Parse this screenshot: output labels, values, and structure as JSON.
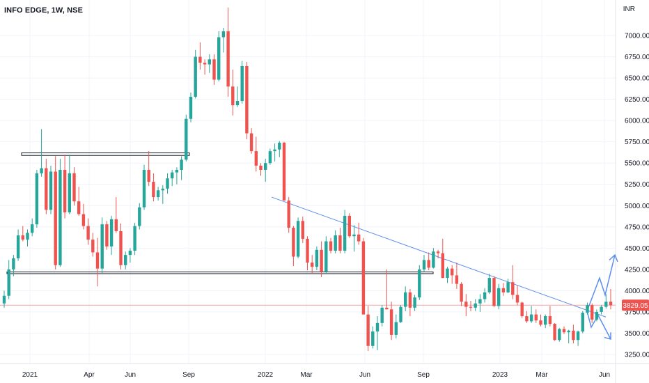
{
  "header": {
    "symbol_title": "INFO EDGE, 1W, NSE",
    "currency": "INR"
  },
  "colors": {
    "up": "#26a69a",
    "down": "#ef5350",
    "trendline": "#5b8def",
    "price_line": "#f4a3a3",
    "grid": "#f0f3fa",
    "box": "#131722"
  },
  "chart_data": {
    "type": "candlestick",
    "ylim": [
      3200,
      7300
    ],
    "y_ticks": [
      "3250.00",
      "3500.00",
      "3750.00",
      "4000.00",
      "4250.00",
      "4500.00",
      "4750.00",
      "5000.00",
      "5250.00",
      "5500.00",
      "5750.00",
      "6000.00",
      "6250.00",
      "6500.00",
      "6750.00",
      "7000.00"
    ],
    "x_ticks": [
      "2021",
      "Apr",
      "Jun",
      "Sep",
      "2022",
      "Mar",
      "Jun",
      "Sep",
      "2023",
      "Mar",
      "Jun"
    ],
    "last_price_label": "3829.05",
    "last_price": 3829.05,
    "ohlc": [
      [
        3850,
        4000,
        3800,
        3940
      ],
      [
        3940,
        4360,
        3900,
        4250
      ],
      [
        4250,
        4420,
        4170,
        4380
      ],
      [
        4380,
        4720,
        4350,
        4650
      ],
      [
        4650,
        4760,
        4580,
        4600
      ],
      [
        4600,
        4720,
        4520,
        4680
      ],
      [
        4680,
        4850,
        4640,
        4780
      ],
      [
        4780,
        5420,
        4740,
        5380
      ],
      [
        5380,
        5900,
        5340,
        5440
      ],
      [
        5440,
        5550,
        4900,
        4950
      ],
      [
        4950,
        5470,
        4900,
        5400
      ],
      [
        5400,
        5580,
        4250,
        4300
      ],
      [
        4300,
        5550,
        4280,
        5420
      ],
      [
        5420,
        5600,
        4850,
        4920
      ],
      [
        4920,
        5600,
        4900,
        5380
      ],
      [
        5380,
        5450,
        5000,
        5050
      ],
      [
        5050,
        5220,
        4880,
        4900
      ],
      [
        4900,
        5020,
        4720,
        4760
      ],
      [
        4760,
        4850,
        4540,
        4600
      ],
      [
        4600,
        4680,
        4400,
        4450
      ],
      [
        4450,
        4620,
        4050,
        4260
      ],
      [
        4260,
        4860,
        4200,
        4780
      ],
      [
        4780,
        4820,
        4480,
        4520
      ],
      [
        4520,
        4880,
        4420,
        4840
      ],
      [
        4840,
        5100,
        4680,
        4700
      ],
      [
        4700,
        4790,
        4250,
        4300
      ],
      [
        4300,
        4460,
        4250,
        4420
      ],
      [
        4420,
        4500,
        4330,
        4470
      ],
      [
        4470,
        4800,
        4420,
        4760
      ],
      [
        4760,
        5030,
        4720,
        4980
      ],
      [
        4980,
        5480,
        4950,
        5420
      ],
      [
        5420,
        5640,
        5230,
        5280
      ],
      [
        5280,
        5380,
        5050,
        5100
      ],
      [
        5100,
        5220,
        5060,
        5180
      ],
      [
        5180,
        5240,
        5020,
        5200
      ],
      [
        5200,
        5380,
        5140,
        5320
      ],
      [
        5320,
        5420,
        5230,
        5390
      ],
      [
        5390,
        5450,
        5250,
        5420
      ],
      [
        5420,
        5580,
        5300,
        5540
      ],
      [
        5540,
        6070,
        5520,
        6020
      ],
      [
        6020,
        6330,
        5980,
        6280
      ],
      [
        6280,
        6830,
        6260,
        6750
      ],
      [
        6750,
        6920,
        6600,
        6680
      ],
      [
        6680,
        6720,
        6540,
        6660
      ],
      [
        6660,
        6780,
        6560,
        6720
      ],
      [
        6720,
        6780,
        6420,
        6480
      ],
      [
        6480,
        7050,
        6460,
        6980
      ],
      [
        6980,
        7090,
        6800,
        7050
      ],
      [
        7050,
        7330,
        6280,
        6400
      ],
      [
        6400,
        6600,
        6060,
        6180
      ],
      [
        6180,
        6400,
        6160,
        6230
      ],
      [
        6230,
        6700,
        6200,
        6640
      ],
      [
        6640,
        6690,
        5780,
        5850
      ],
      [
        5850,
        5910,
        5610,
        5640
      ],
      [
        5640,
        5810,
        5400,
        5470
      ],
      [
        5470,
        5500,
        5350,
        5420
      ],
      [
        5420,
        5550,
        5280,
        5500
      ],
      [
        5500,
        5670,
        5480,
        5640
      ],
      [
        5640,
        5730,
        5520,
        5660
      ],
      [
        5660,
        5760,
        5570,
        5740
      ],
      [
        5740,
        5750,
        5100,
        5060
      ],
      [
        5060,
        5100,
        4680,
        4740
      ],
      [
        4740,
        4760,
        4290,
        4400
      ],
      [
        4400,
        4860,
        4380,
        4820
      ],
      [
        4820,
        4870,
        4560,
        4610
      ],
      [
        4610,
        4640,
        4240,
        4330
      ],
      [
        4330,
        4420,
        4200,
        4280
      ],
      [
        4280,
        4520,
        4240,
        4480
      ],
      [
        4480,
        4580,
        4160,
        4220
      ],
      [
        4220,
        4640,
        4200,
        4580
      ],
      [
        4580,
        4620,
        4440,
        4470
      ],
      [
        4470,
        4710,
        4440,
        4650
      ],
      [
        4650,
        4740,
        4440,
        4470
      ],
      [
        4470,
        4950,
        4440,
        4880
      ],
      [
        4880,
        4910,
        4620,
        4640
      ],
      [
        4640,
        4770,
        4460,
        4660
      ],
      [
        4660,
        4800,
        4540,
        4580
      ],
      [
        4580,
        4620,
        3720,
        3720
      ],
      [
        3720,
        3820,
        3290,
        3350
      ],
      [
        3350,
        3580,
        3320,
        3520
      ],
      [
        3520,
        3700,
        3300,
        3620
      ],
      [
        3620,
        3830,
        3580,
        3800
      ],
      [
        3800,
        4250,
        3780,
        3780
      ],
      [
        3780,
        3870,
        3420,
        3480
      ],
      [
        3480,
        3720,
        3440,
        3630
      ],
      [
        3630,
        3830,
        3620,
        3810
      ],
      [
        3810,
        4050,
        3760,
        3980
      ],
      [
        3980,
        4020,
        3700,
        3800
      ],
      [
        3800,
        3950,
        3760,
        3920
      ],
      [
        3920,
        4300,
        3890,
        4250
      ],
      [
        4250,
        4420,
        4220,
        4360
      ],
      [
        4360,
        4450,
        4240,
        4270
      ],
      [
        4270,
        4500,
        4260,
        4460
      ],
      [
        4460,
        4480,
        4380,
        4440
      ],
      [
        4440,
        4610,
        4150,
        4150
      ],
      [
        4150,
        4280,
        4090,
        4260
      ],
      [
        4260,
        4300,
        4080,
        4180
      ],
      [
        4180,
        4330,
        4020,
        4080
      ],
      [
        4080,
        4100,
        3820,
        3870
      ],
      [
        3870,
        3960,
        3700,
        3810
      ],
      [
        3810,
        3880,
        3760,
        3800
      ],
      [
        3800,
        3900,
        3760,
        3850
      ],
      [
        3850,
        3960,
        3750,
        3900
      ],
      [
        3900,
        4030,
        3860,
        3980
      ],
      [
        3980,
        4200,
        3960,
        4150
      ],
      [
        4150,
        4170,
        3810,
        3820
      ],
      [
        3820,
        4080,
        3780,
        4030
      ],
      [
        4030,
        4090,
        3940,
        3980
      ],
      [
        3980,
        4140,
        3970,
        4100
      ],
      [
        4100,
        4300,
        3900,
        3950
      ],
      [
        3950,
        4060,
        3830,
        3860
      ],
      [
        3860,
        3870,
        3680,
        3700
      ],
      [
        3700,
        3760,
        3620,
        3640
      ],
      [
        3640,
        3820,
        3620,
        3720
      ],
      [
        3720,
        3780,
        3620,
        3650
      ],
      [
        3650,
        3720,
        3580,
        3600
      ],
      [
        3600,
        3720,
        3560,
        3700
      ],
      [
        3700,
        3820,
        3580,
        3610
      ],
      [
        3610,
        3620,
        3410,
        3420
      ],
      [
        3420,
        3560,
        3400,
        3550
      ],
      [
        3550,
        3580,
        3490,
        3510
      ],
      [
        3510,
        3540,
        3380,
        3530
      ],
      [
        3530,
        3600,
        3380,
        3420
      ],
      [
        3420,
        3530,
        3350,
        3520
      ],
      [
        3520,
        3760,
        3500,
        3740
      ],
      [
        3740,
        3860,
        3720,
        3830
      ],
      [
        3830,
        3850,
        3620,
        3660
      ],
      [
        3660,
        3780,
        3640,
        3750
      ],
      [
        3750,
        3830,
        3720,
        3810
      ],
      [
        3810,
        3960,
        3790,
        3870
      ],
      [
        3870,
        4020,
        3780,
        3829.05
      ]
    ],
    "annotations": {
      "resistance_box": [
        5620,
        5590
      ],
      "support_box": [
        4220,
        4200
      ],
      "trendline": "descending",
      "arrows": [
        "bullish",
        "bearish"
      ]
    }
  }
}
